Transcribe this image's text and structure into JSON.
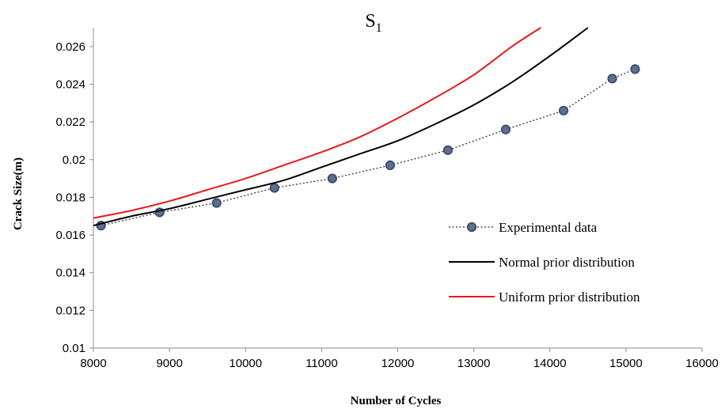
{
  "chart_data": {
    "type": "line",
    "title": "S",
    "title_subscript": "1",
    "xlabel": "Number of Cycles",
    "ylabel": "Crack Size(m)",
    "xlim": [
      8000,
      16000
    ],
    "ylim": [
      0.01,
      0.027
    ],
    "x_ticks": [
      8000,
      9000,
      10000,
      11000,
      12000,
      13000,
      14000,
      15000,
      16000
    ],
    "y_ticks": [
      0.01,
      0.012,
      0.014,
      0.016,
      0.018,
      0.02,
      0.022,
      0.024,
      0.026
    ],
    "x_tick_labels": [
      "8000",
      "9000",
      "10000",
      "11000",
      "12000",
      "13000",
      "14000",
      "15000",
      "16000"
    ],
    "y_tick_labels": [
      "0.01",
      "0.012",
      "0.014",
      "0.016",
      "0.018",
      "0.02",
      "0.022",
      "0.024",
      "0.026"
    ],
    "grid": false,
    "legend_position": "right",
    "series": [
      {
        "name": "Experimental data",
        "style": "dotted-markers",
        "color": "#3a4a6b",
        "marker_color": "#5e6f8e",
        "x": [
          8100,
          8870,
          9620,
          10380,
          11140,
          11900,
          12660,
          13420,
          14180,
          14820,
          15120
        ],
        "y": [
          0.0165,
          0.0172,
          0.0177,
          0.0185,
          0.019,
          0.0197,
          0.0205,
          0.0216,
          0.0226,
          0.0243,
          0.0248
        ]
      },
      {
        "name": "Normal prior distribution",
        "style": "solid",
        "color": "#000000",
        "x": [
          8000,
          8500,
          9000,
          9500,
          10000,
          10500,
          11000,
          11500,
          12000,
          12500,
          13000,
          13500,
          14000,
          14500
        ],
        "y": [
          0.0165,
          0.017,
          0.0174,
          0.0179,
          0.0184,
          0.0189,
          0.0196,
          0.0203,
          0.021,
          0.0219,
          0.0229,
          0.0241,
          0.0255,
          0.027
        ]
      },
      {
        "name": "Uniform prior distribution",
        "style": "solid",
        "color": "#e8191c",
        "x": [
          8000,
          8500,
          9000,
          9500,
          10000,
          10500,
          11000,
          11500,
          12000,
          12500,
          13000,
          13500,
          13880
        ],
        "y": [
          0.0169,
          0.0173,
          0.0178,
          0.0184,
          0.019,
          0.0197,
          0.0204,
          0.0212,
          0.0222,
          0.0233,
          0.0245,
          0.026,
          0.027
        ]
      }
    ]
  }
}
